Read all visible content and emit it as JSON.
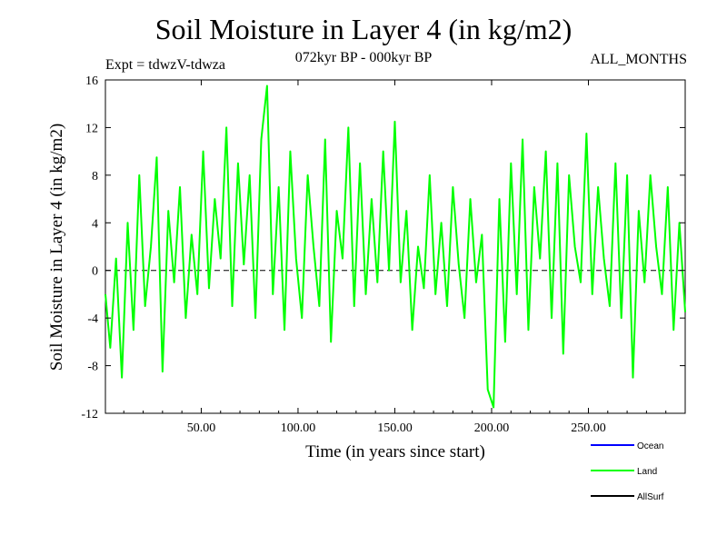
{
  "chart_data": {
    "type": "line",
    "title": "Soil Moisture in Layer 4 (in kg/m2)",
    "subtitle": "072kyr BP - 000kyr BP",
    "expt_label": "Expt = tdwzV-tdwza",
    "months_label": "ALL_MONTHS",
    "xlabel": "Time (in years since start)",
    "ylabel": "Soil Moisture in Layer 4 (in kg/m2)",
    "xlim": [
      0.5,
      300
    ],
    "ylim": [
      -12,
      16
    ],
    "x_ticks": [
      50,
      100,
      150,
      200,
      250
    ],
    "x_tick_labels": [
      "50.00",
      "100.00",
      "150.00",
      "200.00",
      "250.00"
    ],
    "y_ticks": [
      -12,
      -8,
      -4,
      0,
      4,
      8,
      12,
      16
    ],
    "y_tick_labels": [
      "-12",
      "-8",
      "-4",
      "0",
      "4",
      "8",
      "12",
      "16"
    ],
    "zero_line": true,
    "series": [
      {
        "name": "Ocean",
        "color": "#0000ff",
        "values": []
      },
      {
        "name": "Land",
        "color": "#00ff00",
        "x": [
          0.5,
          3,
          6,
          9,
          12,
          15,
          18,
          21,
          24,
          27,
          30,
          33,
          36,
          39,
          42,
          45,
          48,
          51,
          54,
          57,
          60,
          63,
          66,
          69,
          72,
          75,
          78,
          81,
          84,
          87,
          90,
          93,
          96,
          99,
          102,
          105,
          108,
          111,
          114,
          117,
          120,
          123,
          126,
          129,
          132,
          135,
          138,
          141,
          144,
          147,
          150,
          153,
          156,
          159,
          162,
          165,
          168,
          171,
          174,
          177,
          180,
          183,
          186,
          189,
          192,
          195,
          198,
          201,
          204,
          207,
          210,
          213,
          216,
          219,
          222,
          225,
          228,
          231,
          234,
          237,
          240,
          243,
          246,
          249,
          252,
          255,
          258,
          261,
          264,
          267,
          270,
          273,
          276,
          279,
          282,
          285,
          288,
          291,
          294,
          297,
          300
        ],
        "values": [
          -2.0,
          -6.5,
          1.0,
          -9.0,
          4.0,
          -5.0,
          8.0,
          -3.0,
          2.0,
          9.5,
          -8.5,
          5.0,
          -1.0,
          7.0,
          -4.0,
          3.0,
          -2.0,
          10.0,
          -1.5,
          6.0,
          1.0,
          12.0,
          -3.0,
          9.0,
          0.5,
          8.0,
          -4.0,
          11.0,
          15.5,
          -2.0,
          7.0,
          -5.0,
          10.0,
          1.0,
          -4.0,
          8.0,
          2.0,
          -3.0,
          11.0,
          -6.0,
          5.0,
          1.0,
          12.0,
          -3.0,
          9.0,
          -2.0,
          6.0,
          -1.0,
          10.0,
          0.0,
          12.5,
          -1.0,
          5.0,
          -5.0,
          2.0,
          -1.5,
          8.0,
          -2.0,
          4.0,
          -3.0,
          7.0,
          0.5,
          -4.0,
          6.0,
          -1.0,
          3.0,
          -10.0,
          -11.5,
          6.0,
          -6.0,
          9.0,
          -2.0,
          11.0,
          -5.0,
          7.0,
          1.0,
          10.0,
          -4.0,
          9.0,
          -7.0,
          8.0,
          2.0,
          -1.0,
          11.5,
          -2.0,
          7.0,
          1.0,
          -3.0,
          9.0,
          -4.0,
          8.0,
          -9.0,
          5.0,
          -1.0,
          8.0,
          2.0,
          -2.0,
          7.0,
          -5.0,
          4.0,
          -3.5
        ]
      },
      {
        "name": "AllSurf",
        "color": "#000000",
        "values": []
      }
    ],
    "legend": [
      "Ocean",
      "Land",
      "AllSurf"
    ],
    "legend_position": "bottom-right"
  }
}
